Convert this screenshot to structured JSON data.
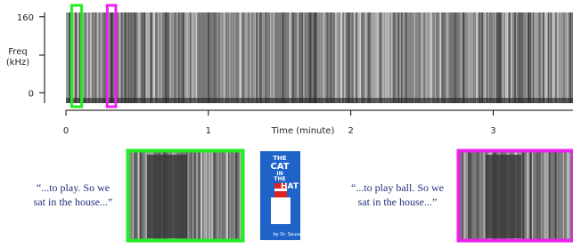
{
  "chart_data": {
    "type": "spectrogram",
    "xlabel": "Time (minute)",
    "ylabel": [
      "Freq",
      "(kHz)"
    ],
    "xlim": [
      0,
      3.56
    ],
    "xticks": [
      0,
      1,
      2,
      3
    ],
    "ylim": [
      -22,
      169
    ],
    "yticks": [
      0,
      160
    ],
    "highlights": [
      {
        "color": "#22ee22",
        "xlim": [
          0.04,
          0.11
        ]
      },
      {
        "color": "#ee22ee",
        "xlim": [
          0.29,
          0.35
        ]
      }
    ],
    "quotes": [
      [
        "“...to play. So we",
        "sat in the house...”"
      ],
      [
        "“...to play ball. So we",
        "sat in the house...”"
      ]
    ],
    "book": {
      "title": [
        "THE",
        "CAT",
        "IN",
        "THE",
        "HAT"
      ],
      "author": "by Dr. Seuss"
    }
  }
}
